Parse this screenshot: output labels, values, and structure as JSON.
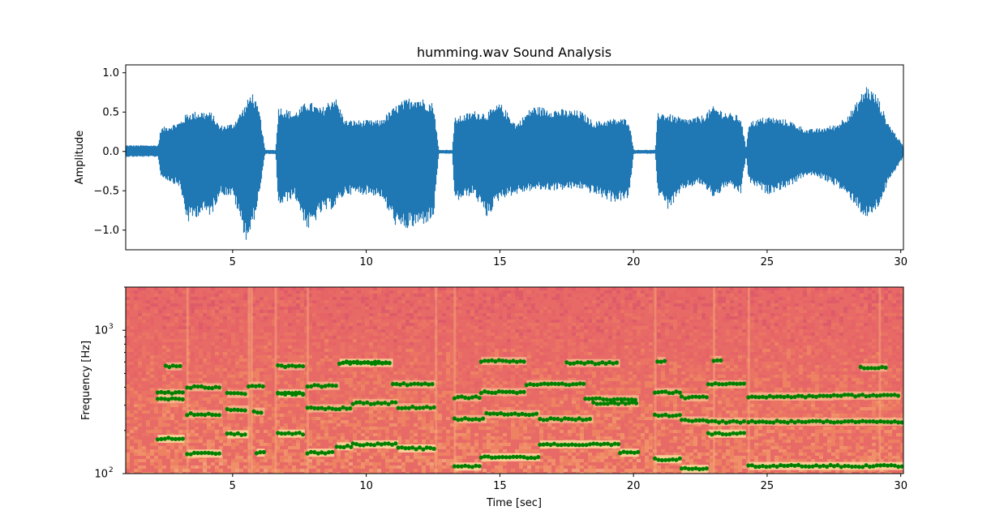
{
  "figure": {
    "title": "humming.wav Sound Analysis"
  },
  "chart_data": [
    {
      "type": "line",
      "panel": "waveform",
      "xlabel": "",
      "ylabel": "Amplitude",
      "xlim": [
        1.0,
        30.1
      ],
      "ylim": [
        -1.25,
        1.1
      ],
      "xticks": [
        5,
        10,
        15,
        20,
        25,
        30
      ],
      "yticks": [
        -1.0,
        -0.5,
        0.0,
        0.5,
        1.0
      ],
      "ytick_labels": [
        "−1.0",
        "−0.5",
        "0.0",
        "0.5",
        "1.0"
      ],
      "color": "#1f77b4",
      "envelope": [
        [
          1.0,
          0.08,
          -0.07
        ],
        [
          2.2,
          0.08,
          -0.07
        ],
        [
          2.3,
          0.3,
          -0.33
        ],
        [
          3.0,
          0.38,
          -0.45
        ],
        [
          3.3,
          0.5,
          -0.92
        ],
        [
          3.8,
          0.52,
          -0.8
        ],
        [
          4.2,
          0.5,
          -0.82
        ],
        [
          4.5,
          0.33,
          -0.55
        ],
        [
          5.0,
          0.36,
          -0.58
        ],
        [
          5.5,
          0.62,
          -1.15
        ],
        [
          5.7,
          0.78,
          -1.02
        ],
        [
          6.0,
          0.5,
          -0.55
        ],
        [
          6.2,
          0.02,
          -0.03
        ],
        [
          6.6,
          0.02,
          -0.04
        ],
        [
          6.7,
          0.58,
          -0.72
        ],
        [
          7.3,
          0.5,
          -0.58
        ],
        [
          7.8,
          0.65,
          -1.02
        ],
        [
          8.3,
          0.55,
          -0.8
        ],
        [
          8.8,
          0.72,
          -0.72
        ],
        [
          9.2,
          0.4,
          -0.55
        ],
        [
          10.0,
          0.4,
          -0.55
        ],
        [
          10.5,
          0.4,
          -0.58
        ],
        [
          11.2,
          0.62,
          -1.02
        ],
        [
          11.8,
          0.72,
          -0.98
        ],
        [
          12.5,
          0.62,
          -0.88
        ],
        [
          12.7,
          0.02,
          -0.03
        ],
        [
          13.2,
          0.02,
          -0.03
        ],
        [
          13.3,
          0.43,
          -0.65
        ],
        [
          14.0,
          0.52,
          -0.55
        ],
        [
          14.5,
          0.5,
          -0.85
        ],
        [
          15.0,
          0.62,
          -0.6
        ],
        [
          15.6,
          0.35,
          -0.55
        ],
        [
          16.2,
          0.58,
          -0.5
        ],
        [
          17.0,
          0.55,
          -0.5
        ],
        [
          18.0,
          0.52,
          -0.48
        ],
        [
          18.5,
          0.38,
          -0.55
        ],
        [
          19.2,
          0.42,
          -0.65
        ],
        [
          19.8,
          0.42,
          -0.62
        ],
        [
          20.0,
          0.02,
          -0.03
        ],
        [
          20.8,
          0.02,
          -0.03
        ],
        [
          20.9,
          0.52,
          -0.55
        ],
        [
          21.3,
          0.48,
          -0.75
        ],
        [
          21.9,
          0.42,
          -0.48
        ],
        [
          22.5,
          0.45,
          -0.42
        ],
        [
          23.0,
          0.58,
          -0.6
        ],
        [
          23.5,
          0.5,
          -0.45
        ],
        [
          24.0,
          0.45,
          -0.55
        ],
        [
          24.2,
          0.03,
          -0.05
        ],
        [
          24.3,
          0.38,
          -0.4
        ],
        [
          25.0,
          0.45,
          -0.55
        ],
        [
          25.8,
          0.4,
          -0.45
        ],
        [
          26.5,
          0.28,
          -0.3
        ],
        [
          27.0,
          0.3,
          -0.35
        ],
        [
          27.6,
          0.35,
          -0.45
        ],
        [
          28.2,
          0.55,
          -0.65
        ],
        [
          28.7,
          0.85,
          -0.88
        ],
        [
          29.1,
          0.72,
          -0.75
        ],
        [
          29.5,
          0.38,
          -0.42
        ],
        [
          30.1,
          0.06,
          -0.06
        ]
      ]
    },
    {
      "type": "scatter",
      "panel": "spectrogram",
      "xlabel": "Time [sec]",
      "ylabel": "Frequency [Hz]",
      "yscale": "log",
      "xlim": [
        1.0,
        30.1
      ],
      "ylim": [
        100,
        2000
      ],
      "xticks": [
        5,
        10,
        15,
        20,
        25,
        30
      ],
      "yticks": [
        100,
        1000
      ],
      "point_color": "#008000",
      "pitch_tracks": [
        {
          "band": "fundamental",
          "segments": [
            [
              2.2,
              3.2,
              175
            ],
            [
              3.3,
              4.6,
              138
            ],
            [
              4.8,
              5.6,
              188
            ],
            [
              5.9,
              6.2,
              140
            ],
            [
              6.7,
              7.7,
              190
            ],
            [
              7.8,
              8.8,
              140
            ],
            [
              8.9,
              9.5,
              155
            ],
            [
              9.5,
              11.2,
              160
            ],
            [
              11.2,
              12.6,
              150
            ],
            [
              13.3,
              14.3,
              112
            ],
            [
              14.3,
              16.5,
              130
            ],
            [
              16.5,
              19.5,
              160
            ],
            [
              19.5,
              20.2,
              140
            ],
            [
              20.8,
              21.8,
              126
            ],
            [
              21.8,
              22.8,
              108
            ],
            [
              22.8,
              24.2,
              190
            ],
            [
              24.3,
              30.1,
              113
            ]
          ]
        },
        {
          "band": "harmonic-2",
          "segments": [
            [
              2.2,
              3.2,
              330
            ],
            [
              3.3,
              4.6,
              260
            ],
            [
              4.8,
              5.6,
              280
            ],
            [
              5.8,
              6.2,
              270
            ],
            [
              6.7,
              7.7,
              365
            ],
            [
              7.8,
              9.5,
              285
            ],
            [
              9.5,
              11.2,
              310
            ],
            [
              11.2,
              12.6,
              290
            ],
            [
              13.3,
              14.5,
              240
            ],
            [
              14.5,
              16.5,
              260
            ],
            [
              16.5,
              18.5,
              240
            ],
            [
              18.5,
              20.2,
              310
            ],
            [
              20.8,
              21.8,
              255
            ],
            [
              21.8,
              22.8,
              235
            ],
            [
              22.8,
              24.2,
              230
            ],
            [
              24.3,
              30.1,
              230
            ]
          ]
        },
        {
          "band": "harmonic-3",
          "segments": [
            [
              2.2,
              3.2,
              365
            ],
            [
              3.3,
              4.6,
              400
            ],
            [
              4.8,
              5.6,
              360
            ],
            [
              5.6,
              6.2,
              410
            ],
            [
              6.7,
              7.7,
              360
            ],
            [
              7.8,
              9.0,
              410
            ],
            [
              9.0,
              11.0,
              590
            ],
            [
              11.0,
              12.6,
              420
            ],
            [
              13.3,
              14.3,
              340
            ],
            [
              14.3,
              16.0,
              370
            ],
            [
              16.0,
              18.2,
              420
            ],
            [
              18.2,
              20.2,
              330
            ],
            [
              20.8,
              21.8,
              370
            ],
            [
              21.8,
              22.8,
              340
            ],
            [
              22.8,
              24.2,
              420
            ],
            [
              24.3,
              27.5,
              345
            ],
            [
              27.5,
              30.0,
              350
            ]
          ]
        },
        {
          "band": "harmonic-4",
          "segments": [
            [
              2.5,
              3.1,
              560
            ],
            [
              6.7,
              7.7,
              560
            ],
            [
              9.0,
              11.0,
              595
            ],
            [
              14.3,
              16.0,
              610
            ],
            [
              17.5,
              19.5,
              590
            ],
            [
              20.9,
              21.2,
              610
            ],
            [
              23.0,
              23.3,
              620
            ],
            [
              28.5,
              29.5,
              550
            ]
          ]
        }
      ]
    }
  ]
}
